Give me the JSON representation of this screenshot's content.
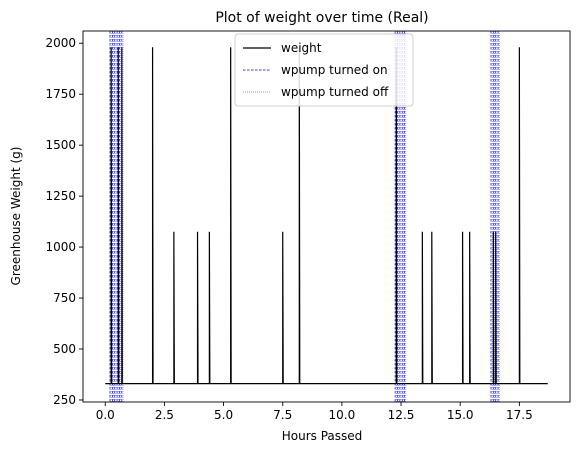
{
  "chart_data": {
    "type": "line",
    "title": "Plot of weight over time (Real)",
    "xlabel": "Hours Passed",
    "ylabel": "Greenhouse Weight (g)",
    "xlim": [
      -0.94,
      19.64
    ],
    "ylim": [
      240,
      2060
    ],
    "x_ticks": [
      0.0,
      2.5,
      5.0,
      7.5,
      10.0,
      12.5,
      15.0,
      17.5
    ],
    "x_tick_labels": [
      "0.0",
      "2.5",
      "5.0",
      "7.5",
      "10.0",
      "12.5",
      "15.0",
      "17.5"
    ],
    "y_ticks": [
      250,
      500,
      750,
      1000,
      1250,
      1500,
      1750,
      2000
    ],
    "y_tick_labels": [
      "250",
      "500",
      "750",
      "1000",
      "1250",
      "1500",
      "1750",
      "2000"
    ],
    "legend_position": "top-center",
    "baseline": 330,
    "x_end": 18.7,
    "series": [
      {
        "name": "weight",
        "color": "#000000",
        "style": "solid",
        "spikes": [
          {
            "x": 0.25,
            "y": 1980
          },
          {
            "x": 0.55,
            "y": 1980
          },
          {
            "x": 0.7,
            "y": 1980
          },
          {
            "x": 2.0,
            "y": 1980
          },
          {
            "x": 2.9,
            "y": 1075
          },
          {
            "x": 3.9,
            "y": 1075
          },
          {
            "x": 4.4,
            "y": 1075
          },
          {
            "x": 5.3,
            "y": 1980
          },
          {
            "x": 7.5,
            "y": 1075
          },
          {
            "x": 8.2,
            "y": 1980
          },
          {
            "x": 12.3,
            "y": 1980
          },
          {
            "x": 13.4,
            "y": 1075
          },
          {
            "x": 13.8,
            "y": 1075
          },
          {
            "x": 15.1,
            "y": 1075
          },
          {
            "x": 15.4,
            "y": 1075
          },
          {
            "x": 16.4,
            "y": 1075
          },
          {
            "x": 16.5,
            "y": 1075
          },
          {
            "x": 17.5,
            "y": 1980
          }
        ]
      },
      {
        "name": "wpump turned on",
        "color": "#0000cc",
        "style": "dashed",
        "x": [
          0.2,
          0.3,
          0.4,
          0.5,
          0.6,
          0.7,
          12.25,
          12.35,
          12.45,
          12.55,
          12.65,
          16.3,
          16.4,
          16.5,
          16.6
        ]
      },
      {
        "name": "wpump turned off",
        "color": "#4040ff",
        "style": "dotted",
        "x": [
          0.25,
          0.35,
          0.45,
          0.55,
          0.65,
          0.75,
          12.3,
          12.4,
          12.5,
          12.6,
          12.7,
          16.35,
          16.45,
          16.55,
          16.65
        ]
      }
    ]
  }
}
